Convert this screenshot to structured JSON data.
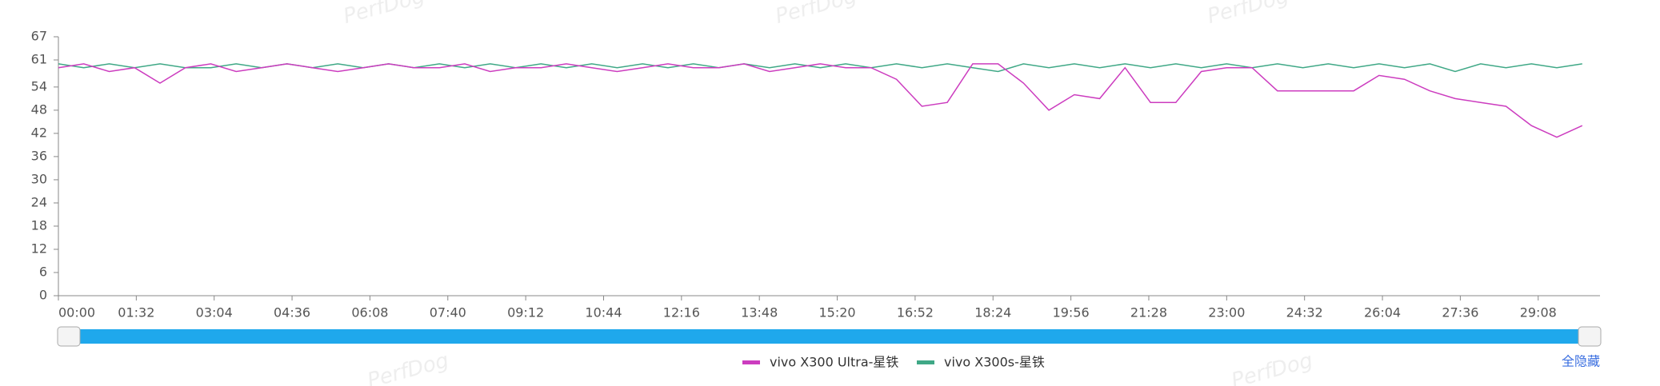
{
  "chart_data": {
    "type": "line",
    "watermark": "PerfDog",
    "hide_all": "全隐藏",
    "x": [
      0,
      30,
      60,
      90,
      120,
      150,
      180,
      210,
      240,
      270,
      300,
      330,
      360,
      390,
      420,
      450,
      480,
      510,
      540,
      570,
      600,
      630,
      660,
      690,
      720,
      750,
      780,
      810,
      840,
      870,
      900,
      930,
      960,
      990,
      1020,
      1050,
      1080,
      1110,
      1140,
      1170,
      1200,
      1230,
      1260,
      1290,
      1320,
      1350,
      1380,
      1410,
      1440,
      1470,
      1500,
      1530,
      1560,
      1590,
      1620,
      1650,
      1680,
      1710,
      1740,
      1770,
      1800
    ],
    "series": [
      {
        "name": "vivo X300 Ultra-星铁",
        "color": "#cc3cbf",
        "values": [
          59,
          60,
          58,
          59,
          55,
          59,
          60,
          58,
          59,
          60,
          59,
          58,
          59,
          60,
          59,
          59,
          60,
          58,
          59,
          59,
          60,
          59,
          58,
          59,
          60,
          59,
          59,
          60,
          58,
          59,
          60,
          59,
          59,
          56,
          49,
          50,
          60,
          60,
          55,
          48,
          52,
          51,
          59,
          50,
          50,
          58,
          59,
          59,
          53,
          53,
          53,
          53,
          57,
          56,
          53,
          51,
          50,
          49,
          44,
          41,
          44
        ]
      },
      {
        "name": "vivo X300s-星铁",
        "color": "#3fa886",
        "values": [
          60,
          59,
          60,
          59,
          60,
          59,
          59,
          60,
          59,
          60,
          59,
          60,
          59,
          60,
          59,
          60,
          59,
          60,
          59,
          60,
          59,
          60,
          59,
          60,
          59,
          60,
          59,
          60,
          59,
          60,
          59,
          60,
          59,
          60,
          59,
          60,
          59,
          58,
          60,
          59,
          60,
          59,
          60,
          59,
          60,
          59,
          60,
          59,
          60,
          59,
          60,
          59,
          60,
          59,
          60,
          58,
          60,
          59,
          60,
          59,
          60
        ]
      }
    ],
    "xlim": [
      0,
      1821
    ],
    "xticks": [
      {
        "value": 0,
        "label": "00:00"
      },
      {
        "value": 92,
        "label": "01:32"
      },
      {
        "value": 184,
        "label": "03:04"
      },
      {
        "value": 276,
        "label": "04:36"
      },
      {
        "value": 368,
        "label": "06:08"
      },
      {
        "value": 460,
        "label": "07:40"
      },
      {
        "value": 552,
        "label": "09:12"
      },
      {
        "value": 644,
        "label": "10:44"
      },
      {
        "value": 736,
        "label": "12:16"
      },
      {
        "value": 828,
        "label": "13:48"
      },
      {
        "value": 920,
        "label": "15:20"
      },
      {
        "value": 1012,
        "label": "16:52"
      },
      {
        "value": 1104,
        "label": "18:24"
      },
      {
        "value": 1196,
        "label": "19:56"
      },
      {
        "value": 1288,
        "label": "21:28"
      },
      {
        "value": 1380,
        "label": "23:00"
      },
      {
        "value": 1472,
        "label": "24:32"
      },
      {
        "value": 1564,
        "label": "26:04"
      },
      {
        "value": 1656,
        "label": "27:36"
      },
      {
        "value": 1748,
        "label": "29:08"
      }
    ],
    "ylim": [
      0,
      67
    ],
    "yticks": [
      0,
      6,
      12,
      18,
      24,
      30,
      36,
      42,
      48,
      54,
      61,
      67
    ],
    "grid": false
  }
}
